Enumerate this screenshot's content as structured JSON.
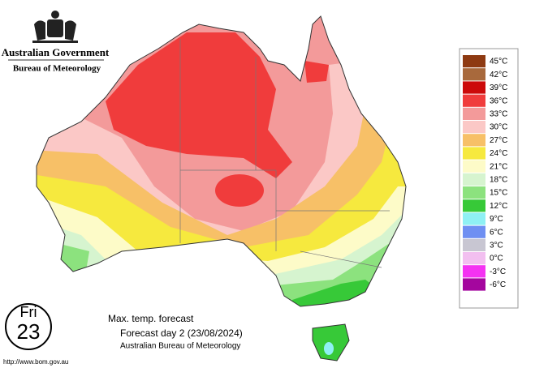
{
  "header": {
    "title": "Australian Government",
    "subtitle": "Bureau of Meteorology"
  },
  "legend": {
    "items": [
      {
        "label": "45°C",
        "color": "#8e3a12"
      },
      {
        "label": "42°C",
        "color": "#a8693c"
      },
      {
        "label": "39°C",
        "color": "#cc0a0a"
      },
      {
        "label": "36°C",
        "color": "#f03c3c"
      },
      {
        "label": "33°C",
        "color": "#f39a9a"
      },
      {
        "label": "30°C",
        "color": "#fbc8c6"
      },
      {
        "label": "27°C",
        "color": "#f7c067"
      },
      {
        "label": "24°C",
        "color": "#f6e93e"
      },
      {
        "label": "21°C",
        "color": "#fdfbc8"
      },
      {
        "label": "18°C",
        "color": "#d6f4cf"
      },
      {
        "label": "15°C",
        "color": "#8ce27e"
      },
      {
        "label": "12°C",
        "color": "#37c938"
      },
      {
        "label": "9°C",
        "color": "#8ff0f4"
      },
      {
        "label": "6°C",
        "color": "#6f8ff2"
      },
      {
        "label": "3°C",
        "color": "#c8c6d2"
      },
      {
        "label": "0°C",
        "color": "#f2bff0"
      },
      {
        "label": "-3°C",
        "color": "#f432f2"
      },
      {
        "label": "-6°C",
        "color": "#a4069e"
      }
    ]
  },
  "day": {
    "weekday": "Fri",
    "date": "23"
  },
  "caption": {
    "title": "Max. temp. forecast",
    "subtitle": "Forecast day 2 (23/08/2024)",
    "source": "Australian Bureau of Meteorology"
  },
  "url": "http://www.bom.gov.au"
}
